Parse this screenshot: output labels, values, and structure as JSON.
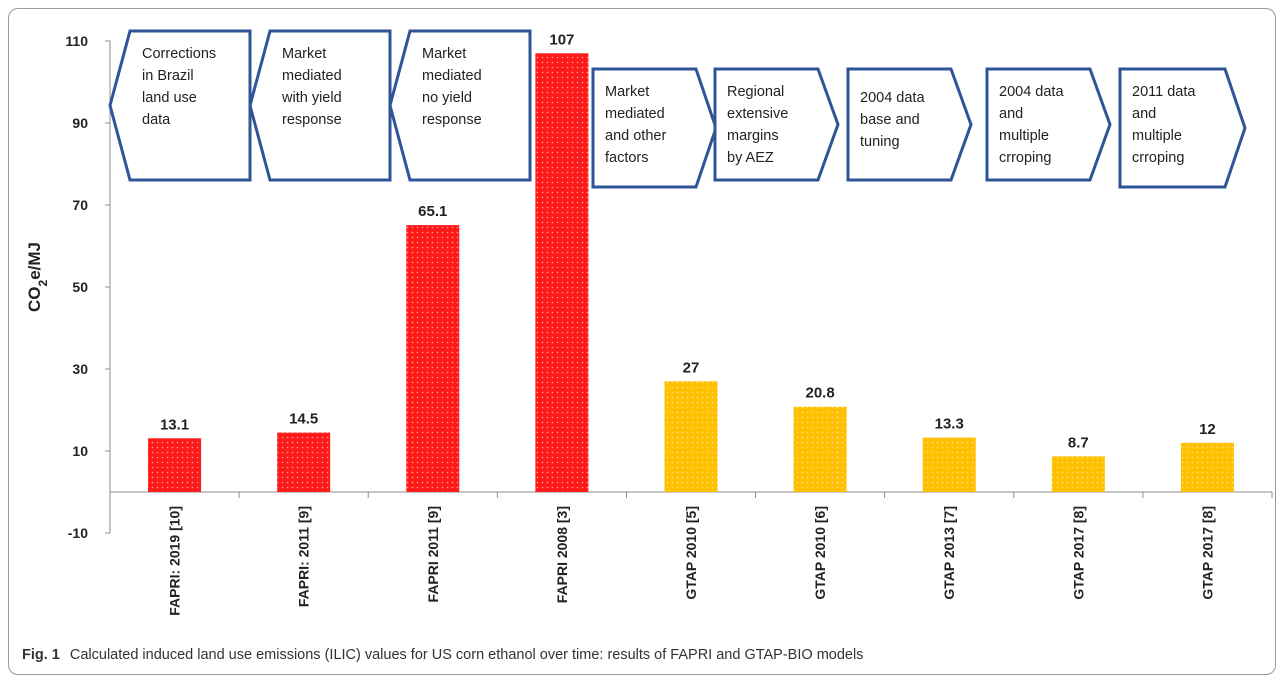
{
  "chart_data": {
    "type": "bar",
    "ylabel_main": "CO",
    "ylabel_sub": "2",
    "ylabel_rest": "e/MJ",
    "ylim": [
      -10,
      110
    ],
    "yticks": [
      110,
      90,
      70,
      50,
      30,
      10,
      -10
    ],
    "categories": [
      "FAPRI: 2019 [10]",
      "FAPRI: 2011 [9]",
      "FAPRI 2011 [9]",
      "FAPRI 2008 [3]",
      "GTAP 2010 [5]",
      "GTAP 2010 [6]",
      "GTAP 2013 [7]",
      "GTAP 2017 [8]",
      "GTAP 2017 [8]"
    ],
    "values": [
      13.1,
      14.5,
      65.1,
      107,
      27,
      20.8,
      13.3,
      8.7,
      12
    ],
    "value_labels": [
      "13.1",
      "14.5",
      "65.1",
      "107",
      "27",
      "20.8",
      "13.3",
      "8.7",
      "12"
    ],
    "bar_colors": [
      "#ff1a1a",
      "#ff1a1a",
      "#ff1a1a",
      "#ff1a1a",
      "#ffc000",
      "#ffc000",
      "#ffc000",
      "#ffc000",
      "#ffc000"
    ],
    "annotations": [
      {
        "shape": "left-arrow",
        "lines": [
          "Corrections",
          "in Brazil",
          "land use",
          "data"
        ]
      },
      {
        "shape": "left-arrow",
        "lines": [
          "Market",
          "mediated",
          "with yield",
          "response"
        ]
      },
      {
        "shape": "left-arrow",
        "lines": [
          "Market",
          "mediated",
          "no yield",
          "response"
        ]
      },
      {
        "shape": "right-arrow",
        "lines": [
          "Market",
          "mediated",
          "and other",
          "factors"
        ]
      },
      {
        "shape": "right-arrow",
        "lines": [
          "Regional",
          "extensive",
          "margins",
          "by AEZ"
        ]
      },
      {
        "shape": "right-arrow",
        "lines": [
          "2004 data",
          "base and",
          "tuning"
        ]
      },
      {
        "shape": "right-arrow",
        "lines": [
          "2004 data",
          "and",
          "multiple",
          "crroping"
        ]
      },
      {
        "shape": "right-arrow",
        "lines": [
          "2011 data",
          "and",
          "multiple",
          "crroping"
        ]
      }
    ],
    "arrow_color": "#2f5597"
  },
  "caption": {
    "label": "Fig. 1",
    "text": "Calculated induced land use emissions (ILIC) values for US corn ethanol over time: results of FAPRI and GTAP-BIO models"
  }
}
